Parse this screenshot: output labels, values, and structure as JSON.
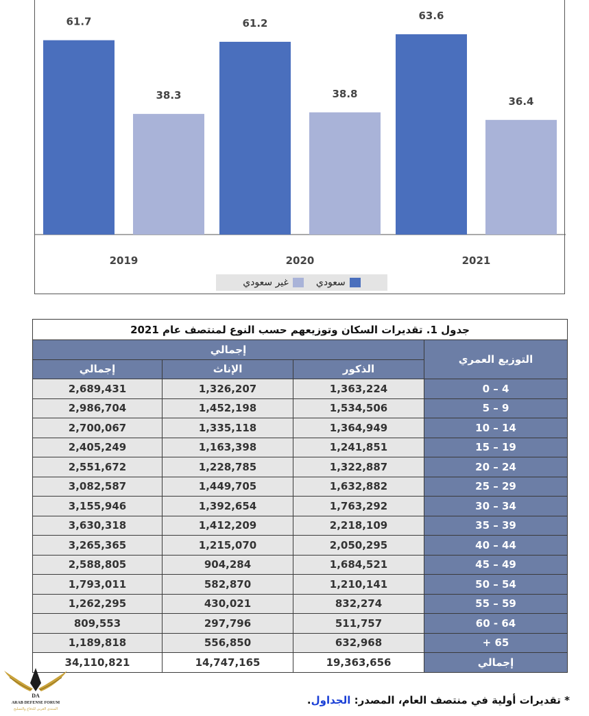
{
  "chart_data": {
    "type": "bar",
    "categories": [
      "2019",
      "2020",
      "2021"
    ],
    "series": [
      {
        "name": "سعودي",
        "values": [
          61.7,
          61.2,
          63.6
        ],
        "color": "#4a6fbd"
      },
      {
        "name": "غير سعودي",
        "values": [
          38.3,
          38.8,
          36.4
        ],
        "color": "#a9b3d8"
      }
    ],
    "ylim": [
      0,
      70
    ],
    "legend_position": "bottom",
    "grid": false
  },
  "legend": {
    "saudi": "سعودي",
    "non_saudi": "غير سعودي"
  },
  "table": {
    "title": "جدول 1. تقديرات السكان وتوزيعهم حسب النوع لمنتصف عام 2021",
    "age_header": "التوزيع العمري",
    "group_header": "إجمالي",
    "col_males": "الذكور",
    "col_females": "الإناث",
    "col_total": "إجمالي",
    "rows": [
      {
        "age": "4 – 0",
        "males": "1,363,224",
        "females": "1,326,207",
        "total": "2,689,431"
      },
      {
        "age": "9 – 5",
        "males": "1,534,506",
        "females": "1,452,198",
        "total": "2,986,704"
      },
      {
        "age": "14 – 10",
        "males": "1,364,949",
        "females": "1,335,118",
        "total": "2,700,067"
      },
      {
        "age": "19 – 15",
        "males": "1,241,851",
        "females": "1,163,398",
        "total": "2,405,249"
      },
      {
        "age": "24 – 20",
        "males": "1,322,887",
        "females": "1,228,785",
        "total": "2,551,672"
      },
      {
        "age": "29 – 25",
        "males": "1,632,882",
        "females": "1,449,705",
        "total": "3,082,587"
      },
      {
        "age": "34 – 30",
        "males": "1,763,292",
        "females": "1,392,654",
        "total": "3,155,946"
      },
      {
        "age": "39 – 35",
        "males": "2,218,109",
        "females": "1,412,209",
        "total": "3,630,318"
      },
      {
        "age": "44 – 40",
        "males": "2,050,295",
        "females": "1,215,070",
        "total": "3,265,365"
      },
      {
        "age": "49 – 45",
        "males": "1,684,521",
        "females": "904,284",
        "total": "2,588,805"
      },
      {
        "age": "54 – 50",
        "males": "1,210,141",
        "females": "582,870",
        "total": "1,793,011"
      },
      {
        "age": "59 – 55",
        "males": "832,274",
        "females": "430,021",
        "total": "1,262,295"
      },
      {
        "age": "64 - 60",
        "males": "511,757",
        "females": "297,796",
        "total": "809,553"
      },
      {
        "age": "65 +",
        "males": "632,968",
        "females": "556,850",
        "total": "1,189,818"
      }
    ],
    "total_row": {
      "age": "إجمالي",
      "males": "19,363,656",
      "females": "14,747,165",
      "total": "34,110,821"
    }
  },
  "footnote": {
    "text": "* تقديرات أولية في منتصف العام، المصدر:",
    "link": "الجداول",
    "end": "."
  },
  "logo": {
    "abbr": "DA",
    "name": "ARAB DEFENSE FORUM",
    "subtitle": "المنتدى العربي للدفاع والتسليح"
  }
}
